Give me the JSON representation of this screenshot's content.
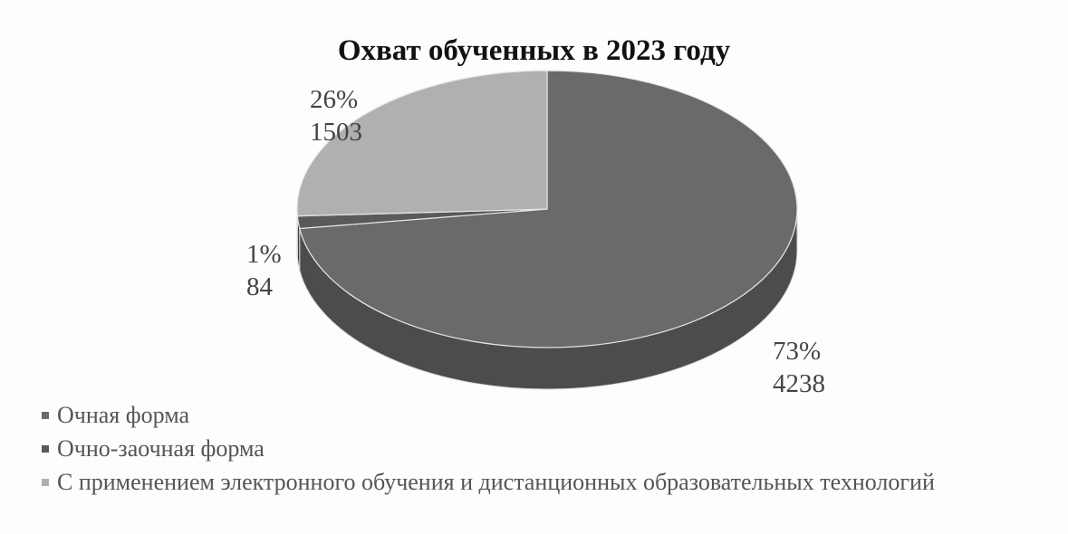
{
  "chart_data": {
    "type": "pie",
    "title": "Охват обученных в 2023 году",
    "legend_position": "bottom-left",
    "slices": [
      {
        "name": "Очная форма",
        "value": 4238,
        "percent_label": "73%",
        "value_label": "4238",
        "color": "#6a6a6a",
        "side_color": "#4c4c4c"
      },
      {
        "name": "Очно-заочная форма",
        "value": 84,
        "percent_label": "1%",
        "value_label": "84",
        "color": "#5a5a5a",
        "side_color": "#3e3e3e"
      },
      {
        "name": "С применением электронного обучения и дистанционных образовательных технологий",
        "value": 1503,
        "percent_label": "26%",
        "value_label": "1503",
        "color": "#b0b0b0",
        "side_color": "#8e8e8e"
      }
    ]
  }
}
